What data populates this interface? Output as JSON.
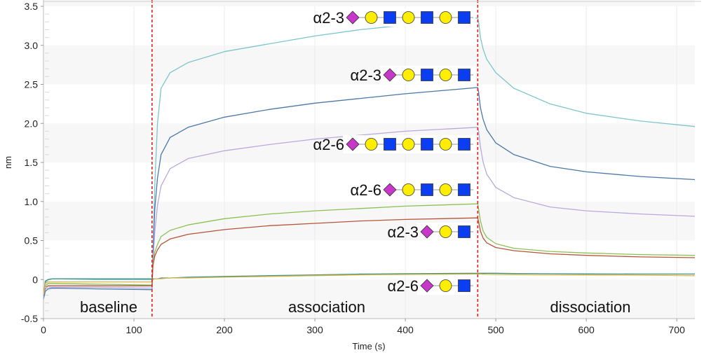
{
  "chart_data": {
    "type": "line",
    "xlabel": "Time (s)",
    "ylabel": "nm",
    "xlim": [
      0,
      720
    ],
    "ylim": [
      -0.5,
      3.5
    ],
    "x_ticks": [
      "0",
      "100",
      "200",
      "300",
      "400",
      "500",
      "600",
      "700"
    ],
    "y_ticks": [
      "-0.5",
      "0",
      "0.5",
      "1.0",
      "1.5",
      "2.0",
      "2.5",
      "3.0",
      "3.5"
    ],
    "grid": true,
    "phase_boundaries": [
      120,
      480
    ],
    "phase_boundary_color": "#e02020",
    "phases": [
      {
        "label": "baseline",
        "t": 60
      },
      {
        "label": "association",
        "t": 300
      },
      {
        "label": "dissociation",
        "t": 600
      }
    ],
    "x": [
      0,
      2,
      5,
      10,
      60,
      120,
      121,
      123,
      126,
      130,
      140,
      160,
      200,
      250,
      300,
      350,
      400,
      480,
      481,
      483,
      486,
      490,
      500,
      520,
      560,
      600,
      660,
      720
    ],
    "series": [
      {
        "color": "#7cc6c9",
        "values": [
          -0.25,
          -0.05,
          0,
          0.01,
          0,
          0,
          0.3,
          1.2,
          2.0,
          2.45,
          2.65,
          2.78,
          2.92,
          3.02,
          3.12,
          3.2,
          3.26,
          3.35,
          3.3,
          3.1,
          2.95,
          2.82,
          2.65,
          2.45,
          2.25,
          2.13,
          2.03,
          1.96
        ]
      },
      {
        "color": "#4a78a8",
        "values": [
          -0.25,
          -0.15,
          -0.12,
          -0.11,
          -0.12,
          -0.13,
          0.3,
          0.9,
          1.3,
          1.6,
          1.82,
          1.95,
          2.08,
          2.18,
          2.26,
          2.32,
          2.38,
          2.46,
          2.4,
          2.2,
          2.05,
          1.92,
          1.75,
          1.6,
          1.45,
          1.38,
          1.32,
          1.28
        ]
      },
      {
        "color": "#b9a8dc",
        "values": [
          -0.2,
          -0.12,
          -0.1,
          -0.1,
          -0.1,
          -0.11,
          0.2,
          0.6,
          0.95,
          1.2,
          1.42,
          1.55,
          1.65,
          1.73,
          1.8,
          1.85,
          1.9,
          1.95,
          1.9,
          1.7,
          1.5,
          1.35,
          1.18,
          1.05,
          0.93,
          0.88,
          0.84,
          0.81
        ]
      },
      {
        "color": "#8cc152",
        "values": [
          -0.2,
          -0.08,
          -0.05,
          -0.05,
          -0.06,
          -0.07,
          0.2,
          0.35,
          0.45,
          0.55,
          0.63,
          0.7,
          0.78,
          0.84,
          0.88,
          0.91,
          0.94,
          0.97,
          0.9,
          0.75,
          0.62,
          0.54,
          0.46,
          0.4,
          0.36,
          0.34,
          0.32,
          0.31
        ]
      },
      {
        "color": "#b5553a",
        "values": [
          -0.2,
          -0.1,
          -0.08,
          -0.08,
          -0.08,
          -0.08,
          0.18,
          0.3,
          0.38,
          0.45,
          0.52,
          0.58,
          0.64,
          0.69,
          0.72,
          0.75,
          0.77,
          0.79,
          0.74,
          0.62,
          0.53,
          0.47,
          0.41,
          0.37,
          0.33,
          0.31,
          0.29,
          0.28
        ]
      },
      {
        "color": "#3f8f7f",
        "values": [
          -0.2,
          -0.02,
          0,
          0.01,
          0.01,
          0.01,
          0.01,
          0.01,
          0.01,
          0.02,
          0.02,
          0.03,
          0.04,
          0.05,
          0.06,
          0.07,
          0.075,
          0.08,
          0.08,
          0.08,
          0.08,
          0.08,
          0.08,
          0.078,
          0.075,
          0.072,
          0.07,
          0.07
        ]
      },
      {
        "color": "#d9b84a",
        "values": [
          -0.2,
          -0.05,
          -0.03,
          -0.03,
          -0.03,
          -0.03,
          0,
          0.01,
          0.01,
          0.01,
          0.02,
          0.02,
          0.03,
          0.04,
          0.05,
          0.06,
          0.065,
          0.07,
          0.07,
          0.07,
          0.068,
          0.066,
          0.064,
          0.062,
          0.06,
          0.058,
          0.055,
          0.05
        ]
      }
    ],
    "annotations": [
      {
        "linkage": "α2-3",
        "residues": [
          "sialic-acid",
          "galactose",
          "glcnac",
          "galactose",
          "glcnac",
          "galactose",
          "glcnac"
        ]
      },
      {
        "linkage": "α2-3",
        "residues": [
          "sialic-acid",
          "galactose",
          "glcnac",
          "galactose",
          "glcnac"
        ]
      },
      {
        "linkage": "α2-6",
        "residues": [
          "sialic-acid",
          "galactose",
          "glcnac",
          "galactose",
          "glcnac",
          "galactose",
          "glcnac"
        ]
      },
      {
        "linkage": "α2-6",
        "residues": [
          "sialic-acid",
          "galactose",
          "glcnac",
          "galactose",
          "glcnac"
        ]
      },
      {
        "linkage": "α2-3",
        "residues": [
          "sialic-acid",
          "galactose",
          "glcnac"
        ]
      },
      {
        "linkage": "α2-6",
        "residues": [
          "sialic-acid",
          "galactose",
          "glcnac"
        ]
      }
    ],
    "residue_colors": {
      "sialic-acid": "#c838c8",
      "galactose": "#ffee00",
      "glcnac": "#0a3ef0"
    }
  }
}
